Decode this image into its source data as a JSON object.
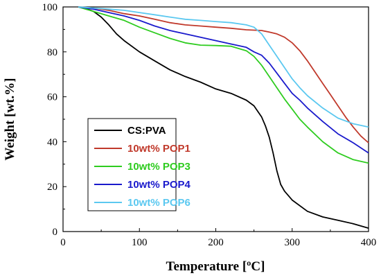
{
  "chart_data": {
    "type": "line",
    "title": "",
    "xlabel": "Temperature [ºC]",
    "ylabel": "Weight [wt.%]",
    "xlim": [
      0,
      400
    ],
    "ylim": [
      0,
      100
    ],
    "xticks": [
      0,
      100,
      200,
      300,
      400
    ],
    "yticks": [
      0,
      20,
      40,
      60,
      80,
      100
    ],
    "grid": false,
    "legend_position": "lower-left",
    "series": [
      {
        "name": "CS:PVA",
        "color": "#000000",
        "x": [
          20,
          30,
          40,
          50,
          60,
          70,
          80,
          100,
          120,
          140,
          160,
          180,
          200,
          220,
          240,
          250,
          260,
          265,
          270,
          275,
          280,
          285,
          290,
          300,
          320,
          340,
          360,
          380,
          400
        ],
        "y": [
          100,
          99.3,
          98,
          95.5,
          92,
          88,
          85,
          80,
          76,
          72,
          69,
          66.5,
          63.5,
          61.5,
          58.5,
          56,
          51,
          47,
          42,
          35,
          27,
          21,
          18,
          14,
          9,
          6.5,
          5,
          3.5,
          1.5
        ]
      },
      {
        "name": "10wt% POP1",
        "color": "#c0392b",
        "x": [
          20,
          40,
          60,
          80,
          100,
          120,
          140,
          160,
          180,
          200,
          220,
          240,
          260,
          270,
          280,
          290,
          300,
          310,
          320,
          330,
          340,
          350,
          360,
          370,
          380,
          390,
          400
        ],
        "y": [
          100,
          99.5,
          98.5,
          97,
          96,
          94.5,
          93,
          92,
          91.5,
          91,
          90.5,
          89.8,
          89.5,
          88.8,
          88,
          86.5,
          84,
          80.5,
          76,
          71,
          66,
          61,
          56,
          51,
          46.5,
          42.5,
          39.5
        ]
      },
      {
        "name": "10wt% POP3",
        "color": "#2ecc1f",
        "x": [
          20,
          40,
          60,
          80,
          100,
          120,
          140,
          160,
          180,
          200,
          220,
          240,
          250,
          260,
          270,
          280,
          290,
          300,
          310,
          320,
          340,
          360,
          380,
          400
        ],
        "y": [
          100,
          98,
          96,
          94,
          91,
          88.5,
          86,
          84,
          83,
          82.8,
          82.5,
          80.5,
          78,
          74,
          69,
          64,
          59,
          54.5,
          50,
          46.5,
          40,
          35,
          32,
          30.5
        ]
      },
      {
        "name": "10wt% POP4",
        "color": "#1a1acc",
        "x": [
          20,
          40,
          60,
          80,
          100,
          120,
          140,
          160,
          180,
          200,
          220,
          240,
          250,
          260,
          270,
          280,
          290,
          300,
          310,
          320,
          340,
          360,
          380,
          400
        ],
        "y": [
          100,
          99,
          97.5,
          96,
          94,
          91.5,
          89.5,
          88,
          86.5,
          85,
          83.5,
          82,
          80,
          78.5,
          75,
          70.5,
          66,
          61.5,
          58.5,
          55,
          49,
          43.5,
          39.5,
          35
        ]
      },
      {
        "name": "10wt% POP6",
        "color": "#5bc8f0",
        "x": [
          20,
          40,
          60,
          80,
          100,
          120,
          140,
          160,
          180,
          200,
          220,
          240,
          250,
          260,
          270,
          280,
          290,
          300,
          310,
          320,
          340,
          360,
          380,
          400
        ],
        "y": [
          100,
          99.5,
          99,
          98.5,
          97.5,
          96.5,
          95.5,
          94.5,
          94,
          93.5,
          93,
          92,
          91,
          88,
          83,
          78,
          73,
          68,
          64,
          60.5,
          55,
          50.5,
          48,
          46.5
        ]
      }
    ]
  }
}
